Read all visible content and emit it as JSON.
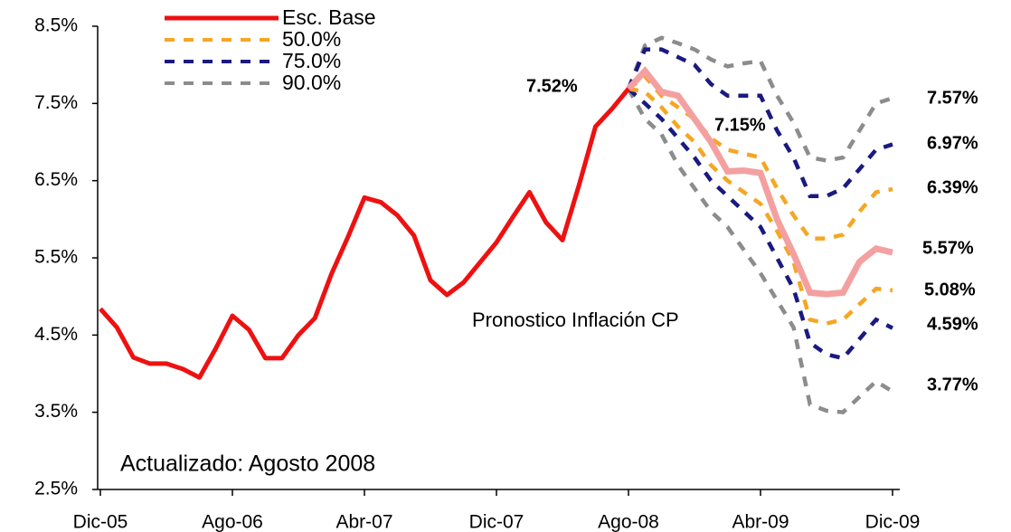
{
  "chart_data": {
    "type": "line",
    "categories": [
      "Dic-05",
      null,
      null,
      null,
      null,
      null,
      null,
      null,
      "Ago-06",
      null,
      null,
      null,
      null,
      null,
      null,
      null,
      "Abr-07",
      null,
      null,
      null,
      null,
      null,
      null,
      null,
      "Dic-07",
      null,
      null,
      null,
      null,
      null,
      null,
      null,
      "Ago-08",
      null,
      null,
      null,
      null,
      null,
      null,
      null,
      "Abr-09",
      null,
      null,
      null,
      null,
      null,
      null,
      null,
      "Dic-09"
    ],
    "ylim": [
      2.5,
      8.5
    ],
    "yticks": [
      {
        "value": 2.5,
        "label": "2.5%"
      },
      {
        "value": 3.5,
        "label": "3.5%"
      },
      {
        "value": 4.5,
        "label": "4.5%"
      },
      {
        "value": 5.5,
        "label": "5.5%"
      },
      {
        "value": 6.5,
        "label": "6.5%"
      },
      {
        "value": 7.5,
        "label": "7.5%"
      },
      {
        "value": 8.5,
        "label": "8.5%"
      }
    ],
    "series": [
      {
        "name": "Esc. Base",
        "color": "#ee1111",
        "forecast_color": "#f4a0a0",
        "values": [
          4.84,
          4.6,
          4.21,
          4.13,
          4.13,
          4.06,
          3.95,
          4.33,
          4.75,
          4.57,
          4.2,
          4.2,
          4.5,
          4.72,
          5.29,
          5.77,
          6.28,
          6.22,
          6.05,
          5.79,
          5.21,
          5.02,
          5.18,
          5.44,
          5.7,
          6.03,
          6.35,
          5.96,
          5.73,
          6.44,
          7.2,
          7.43,
          7.69,
          7.92,
          7.65,
          7.6,
          7.3,
          7.0,
          6.62,
          6.63,
          6.6,
          6.0,
          5.55,
          5.05,
          5.03,
          5.05,
          5.45,
          5.62,
          5.57
        ]
      },
      {
        "name": "50.0%",
        "color": "#f5a623",
        "upper": [
          null,
          null,
          null,
          null,
          null,
          null,
          null,
          null,
          null,
          null,
          null,
          null,
          null,
          null,
          null,
          null,
          null,
          null,
          null,
          null,
          null,
          null,
          null,
          null,
          null,
          null,
          null,
          null,
          null,
          null,
          null,
          null,
          7.69,
          7.85,
          7.6,
          7.45,
          7.3,
          7.05,
          6.9,
          6.85,
          6.8,
          6.4,
          6.05,
          5.75,
          5.75,
          5.8,
          6.1,
          6.35,
          6.39
        ],
        "lower": [
          null,
          null,
          null,
          null,
          null,
          null,
          null,
          null,
          null,
          null,
          null,
          null,
          null,
          null,
          null,
          null,
          null,
          null,
          null,
          null,
          null,
          null,
          null,
          null,
          null,
          null,
          null,
          null,
          null,
          null,
          null,
          null,
          7.69,
          7.65,
          7.45,
          7.2,
          7.0,
          6.7,
          6.5,
          6.35,
          6.2,
          5.85,
          5.45,
          4.7,
          4.65,
          4.7,
          4.9,
          5.1,
          5.08
        ]
      },
      {
        "name": "75.0%",
        "color": "#1a1a80",
        "upper": [
          null,
          null,
          null,
          null,
          null,
          null,
          null,
          null,
          null,
          null,
          null,
          null,
          null,
          null,
          null,
          null,
          null,
          null,
          null,
          null,
          null,
          null,
          null,
          null,
          null,
          null,
          null,
          null,
          null,
          null,
          null,
          null,
          7.69,
          8.2,
          8.2,
          8.1,
          8.0,
          7.75,
          7.6,
          7.6,
          7.6,
          7.15,
          6.8,
          6.3,
          6.3,
          6.4,
          6.65,
          6.9,
          6.97
        ],
        "lower": [
          null,
          null,
          null,
          null,
          null,
          null,
          null,
          null,
          null,
          null,
          null,
          null,
          null,
          null,
          null,
          null,
          null,
          null,
          null,
          null,
          null,
          null,
          null,
          null,
          null,
          null,
          null,
          null,
          null,
          null,
          null,
          null,
          7.69,
          7.5,
          7.3,
          7.05,
          6.8,
          6.5,
          6.3,
          6.1,
          5.9,
          5.5,
          5.1,
          4.4,
          4.25,
          4.2,
          4.45,
          4.7,
          4.59
        ]
      },
      {
        "name": "90.0%",
        "color": "#8c8c8c",
        "upper": [
          null,
          null,
          null,
          null,
          null,
          null,
          null,
          null,
          null,
          null,
          null,
          null,
          null,
          null,
          null,
          null,
          null,
          null,
          null,
          null,
          null,
          null,
          null,
          null,
          null,
          null,
          null,
          null,
          null,
          null,
          null,
          null,
          7.69,
          8.25,
          8.35,
          8.28,
          8.2,
          8.07,
          7.98,
          8.02,
          8.05,
          7.6,
          7.25,
          6.8,
          6.76,
          6.8,
          7.15,
          7.5,
          7.57
        ],
        "lower": [
          null,
          null,
          null,
          null,
          null,
          null,
          null,
          null,
          null,
          null,
          null,
          null,
          null,
          null,
          null,
          null,
          null,
          null,
          null,
          null,
          null,
          null,
          null,
          null,
          null,
          null,
          null,
          null,
          null,
          null,
          null,
          null,
          7.69,
          7.3,
          7.1,
          6.7,
          6.4,
          6.1,
          5.9,
          5.6,
          5.3,
          4.95,
          4.6,
          3.6,
          3.52,
          3.5,
          3.7,
          3.9,
          3.77
        ]
      }
    ],
    "annotations": [
      {
        "text": "7.52%",
        "color": "#ee1111"
      },
      {
        "text": "7.15%",
        "color": "#ee1111"
      },
      {
        "text": "7.57%",
        "color": "#999999"
      },
      {
        "text": "6.97%",
        "color": "#1a1a80"
      },
      {
        "text": "6.39%",
        "color": "#f5a623"
      },
      {
        "text": "5.57%",
        "color": "#ee1111"
      },
      {
        "text": "5.08%",
        "color": "#f5a623"
      },
      {
        "text": "4.59%",
        "color": "#1a1a80"
      },
      {
        "text": "3.77%",
        "color": "#999999"
      },
      {
        "text": "Pronostico Inflación CP",
        "color": "#1a1a9a"
      },
      {
        "text": "Actualizado: Agosto 2008",
        "color": "#000000"
      }
    ]
  }
}
